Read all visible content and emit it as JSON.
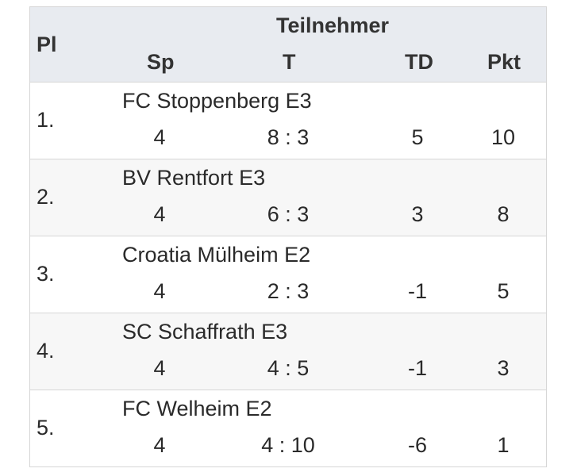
{
  "header": {
    "pl": "Pl",
    "teilnehmer": "Teilnehmer",
    "sp": "Sp",
    "t": "T",
    "td": "TD",
    "pkt": "Pkt"
  },
  "rows": [
    {
      "rank": "1.",
      "team": "FC Stoppenberg E3",
      "sp": "4",
      "t": "8 : 3",
      "td": "5",
      "pkt": "10"
    },
    {
      "rank": "2.",
      "team": "BV Rentfort E3",
      "sp": "4",
      "t": "6 : 3",
      "td": "3",
      "pkt": "8"
    },
    {
      "rank": "3.",
      "team": "Croatia Mülheim E2",
      "sp": "4",
      "t": "2 : 3",
      "td": "-1",
      "pkt": "5"
    },
    {
      "rank": "4.",
      "team": "SC Schaffrath E3",
      "sp": "4",
      "t": "4 : 5",
      "td": "-1",
      "pkt": "3"
    },
    {
      "rank": "5.",
      "team": "FC Welheim E2",
      "sp": "4",
      "t": "4 : 10",
      "td": "-6",
      "pkt": "1"
    }
  ]
}
